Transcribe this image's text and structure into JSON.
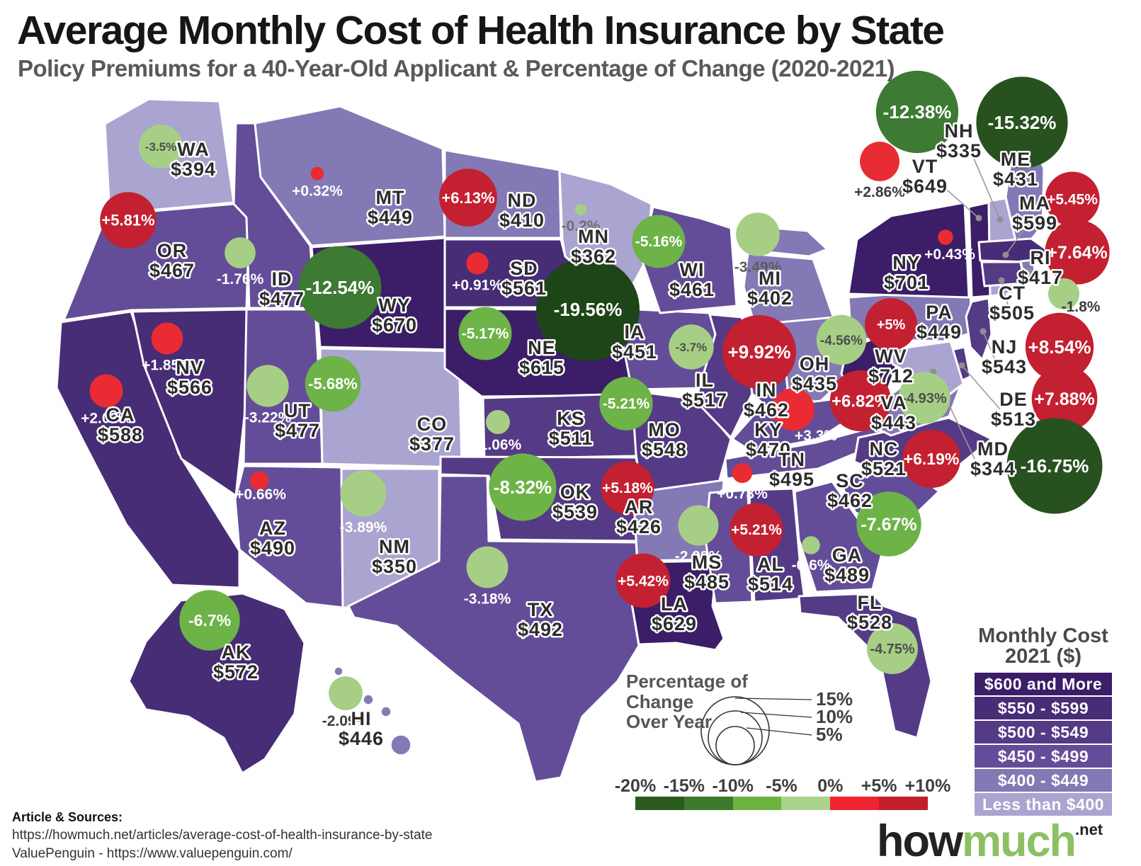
{
  "header": {
    "title": "Average Monthly Cost of Health Insurance by State",
    "subtitle": "Policy Premiums for a 40-Year-Old Applicant & Percentage of Change (2020-2021)"
  },
  "chart_data": {
    "type": "choropleth-bubble-map",
    "region": "United States",
    "title": "Average Monthly Cost of Health Insurance by State",
    "subtitle": "Policy Premiums for a 40-Year-Old Applicant & Percentage of Change (2020-2021)",
    "states": [
      {
        "abbr": "WA",
        "cost": 394,
        "cost_label": "$394",
        "change_pct": -3.5,
        "change_label": "-3.5%"
      },
      {
        "abbr": "OR",
        "cost": 467,
        "cost_label": "$467",
        "change_pct": 5.81,
        "change_label": "+5.81%"
      },
      {
        "abbr": "CA",
        "cost": 588,
        "cost_label": "$588",
        "change_pct": 2.03,
        "change_label": "+2.03%"
      },
      {
        "abbr": "NV",
        "cost": 566,
        "cost_label": "$566",
        "change_pct": 1.85,
        "change_label": "+1.85%"
      },
      {
        "abbr": "ID",
        "cost": 477,
        "cost_label": "$477",
        "change_pct": -1.76,
        "change_label": "-1.76%"
      },
      {
        "abbr": "MT",
        "cost": 449,
        "cost_label": "$449",
        "change_pct": 0.32,
        "change_label": "+0.32%"
      },
      {
        "abbr": "WY",
        "cost": 670,
        "cost_label": "$670",
        "change_pct": -12.54,
        "change_label": "-12.54%"
      },
      {
        "abbr": "UT",
        "cost": 477,
        "cost_label": "$477",
        "change_pct": -3.22,
        "change_label": "-3.22%"
      },
      {
        "abbr": "CO",
        "cost": 377,
        "cost_label": "$377",
        "change_pct": -5.68,
        "change_label": "-5.68%"
      },
      {
        "abbr": "AZ",
        "cost": 490,
        "cost_label": "$490",
        "change_pct": 0.66,
        "change_label": "+0.66%"
      },
      {
        "abbr": "NM",
        "cost": 350,
        "cost_label": "$350",
        "change_pct": -3.89,
        "change_label": "-3.89%"
      },
      {
        "abbr": "ND",
        "cost": 410,
        "cost_label": "$410",
        "change_pct": 6.13,
        "change_label": "+6.13%"
      },
      {
        "abbr": "SD",
        "cost": 561,
        "cost_label": "$561",
        "change_pct": 0.91,
        "change_label": "+0.91%"
      },
      {
        "abbr": "NE",
        "cost": 615,
        "cost_label": "$615",
        "change_pct": -5.17,
        "change_label": "-5.17%"
      },
      {
        "abbr": "KS",
        "cost": 511,
        "cost_label": "$511",
        "change_pct": -1.06,
        "change_label": "-1.06%"
      },
      {
        "abbr": "OK",
        "cost": 539,
        "cost_label": "$539",
        "change_pct": -8.32,
        "change_label": "-8.32%"
      },
      {
        "abbr": "TX",
        "cost": 492,
        "cost_label": "$492",
        "change_pct": -3.18,
        "change_label": "-3.18%"
      },
      {
        "abbr": "MN",
        "cost": 362,
        "cost_label": "$362",
        "change_pct": -0.2,
        "change_label": "-0.2%"
      },
      {
        "abbr": "IA",
        "cost": 451,
        "cost_label": "$451",
        "change_pct": -19.56,
        "change_label": "-19.56%"
      },
      {
        "abbr": "MO",
        "cost": 548,
        "cost_label": "$548",
        "change_pct": -5.21,
        "change_label": "-5.21%"
      },
      {
        "abbr": "AR",
        "cost": 426,
        "cost_label": "$426",
        "change_pct": 5.18,
        "change_label": "+5.18%"
      },
      {
        "abbr": "LA",
        "cost": 629,
        "cost_label": "$629",
        "change_pct": 5.42,
        "change_label": "+5.42%"
      },
      {
        "abbr": "WI",
        "cost": 461,
        "cost_label": "$461",
        "change_pct": -5.16,
        "change_label": "-5.16%"
      },
      {
        "abbr": "IL",
        "cost": 517,
        "cost_label": "$517",
        "change_pct": -3.7,
        "change_label": "-3.7%"
      },
      {
        "abbr": "MI",
        "cost": 402,
        "cost_label": "$402",
        "change_pct": -3.49,
        "change_label": "-3.49%"
      },
      {
        "abbr": "IN",
        "cost": 462,
        "cost_label": "$462",
        "change_pct": 9.92,
        "change_label": "+9.92%"
      },
      {
        "abbr": "OH",
        "cost": 435,
        "cost_label": "$435",
        "change_pct": -4.56,
        "change_label": "-4.56%"
      },
      {
        "abbr": "KY",
        "cost": 470,
        "cost_label": "$470",
        "change_pct": 3.3,
        "change_label": "+3.3%"
      },
      {
        "abbr": "TN",
        "cost": 495,
        "cost_label": "$495",
        "change_pct": 0.73,
        "change_label": "+0.73%"
      },
      {
        "abbr": "MS",
        "cost": 485,
        "cost_label": "$485",
        "change_pct": -2.98,
        "change_label": "-2.98%"
      },
      {
        "abbr": "AL",
        "cost": 514,
        "cost_label": "$514",
        "change_pct": 5.21,
        "change_label": "+5.21%"
      },
      {
        "abbr": "GA",
        "cost": 489,
        "cost_label": "$489",
        "change_pct": -0.6,
        "change_label": "-0.6%"
      },
      {
        "abbr": "FL",
        "cost": 528,
        "cost_label": "$528",
        "change_pct": -4.75,
        "change_label": "-4.75%"
      },
      {
        "abbr": "SC",
        "cost": 462,
        "cost_label": "$462",
        "change_pct": -7.67,
        "change_label": "-7.67%"
      },
      {
        "abbr": "NC",
        "cost": 521,
        "cost_label": "$521",
        "change_pct": 6.19,
        "change_label": "+6.19%"
      },
      {
        "abbr": "VA",
        "cost": 443,
        "cost_label": "$443",
        "change_pct": -4.93,
        "change_label": "-4.93%"
      },
      {
        "abbr": "WV",
        "cost": 712,
        "cost_label": "$712",
        "change_pct": 6.82,
        "change_label": "+6.82%"
      },
      {
        "abbr": "PA",
        "cost": 449,
        "cost_label": "$449",
        "change_pct": 5,
        "change_label": "+5%"
      },
      {
        "abbr": "NY",
        "cost": 701,
        "cost_label": "$701",
        "change_pct": 0.43,
        "change_label": "+0.43%"
      },
      {
        "abbr": "VT",
        "cost": 649,
        "cost_label": "$649",
        "change_pct": 2.86,
        "change_label": "+2.86%"
      },
      {
        "abbr": "NH",
        "cost": 335,
        "cost_label": "$335",
        "change_pct": -12.38,
        "change_label": "-12.38%"
      },
      {
        "abbr": "ME",
        "cost": 431,
        "cost_label": "$431",
        "change_pct": -15.32,
        "change_label": "-15.32%"
      },
      {
        "abbr": "MA",
        "cost": 599,
        "cost_label": "$599",
        "change_pct": 5.45,
        "change_label": "+5.45%"
      },
      {
        "abbr": "RI",
        "cost": 417,
        "cost_label": "$417",
        "change_pct": 7.64,
        "change_label": "+7.64%"
      },
      {
        "abbr": "CT",
        "cost": 505,
        "cost_label": "$505",
        "change_pct": -1.8,
        "change_label": "-1.8%"
      },
      {
        "abbr": "NJ",
        "cost": 543,
        "cost_label": "$543",
        "change_pct": 8.54,
        "change_label": "+8.54%"
      },
      {
        "abbr": "DE",
        "cost": 513,
        "cost_label": "$513",
        "change_pct": 7.88,
        "change_label": "+7.88%"
      },
      {
        "abbr": "MD",
        "cost": 344,
        "cost_label": "$344",
        "change_pct": -16.75,
        "change_label": "-16.75%"
      },
      {
        "abbr": "AK",
        "cost": 572,
        "cost_label": "$572",
        "change_pct": -6.7,
        "change_label": "-6.7%"
      },
      {
        "abbr": "HI",
        "cost": 446,
        "cost_label": "$446",
        "change_pct": -2.09,
        "change_label": "-2.09%"
      }
    ],
    "cost_legend": {
      "title_line1": "Monthly Cost",
      "title_line2": "2021 ($)",
      "bands": [
        {
          "label": "$600 and More",
          "min": 600,
          "max": 99999,
          "color": "#3b1d68"
        },
        {
          "label": "$550 - $599",
          "min": 550,
          "max": 599,
          "color": "#472c76"
        },
        {
          "label": "$500 - $549",
          "min": 500,
          "max": 549,
          "color": "#553a86"
        },
        {
          "label": "$450 - $499",
          "min": 450,
          "max": 499,
          "color": "#644d98"
        },
        {
          "label": "$400 - $449",
          "min": 400,
          "max": 449,
          "color": "#8379b5"
        },
        {
          "label": "Less than $400",
          "min": 0,
          "max": 399,
          "color": "#aaa4d0"
        }
      ]
    },
    "change_scale": {
      "tick_labels": [
        "-20%",
        "-15%",
        "-10%",
        "-5%",
        "0%",
        "+5%",
        "+10%"
      ],
      "segment_colors": [
        "#2b5a1e",
        "#3d7a2f",
        "#6cb33f",
        "#a9d28a",
        "#ee2432",
        "#c21f2b"
      ]
    },
    "change_colors": {
      "increase_high": "#c32031",
      "increase_low": "#e92b33",
      "decrease_light": "#a6cf85",
      "decrease_mid": "#6db348",
      "decrease_dark": "#3d7a33",
      "decrease_darker": "#27511f",
      "decrease_deepest": "#1e4518"
    },
    "size_legend": {
      "title_lines": [
        "Percentage of",
        "Change",
        "Over Year"
      ],
      "circle_labels": [
        "15%",
        "10%",
        "5%"
      ]
    }
  },
  "footer": {
    "sources_heading": "Article & Sources:",
    "source_line1": "https://howmuch.net/articles/average-cost-of-health-insurance-by-state",
    "source_line2": "ValuePenguin - https://www.valuepenguin.com/",
    "logo": {
      "part1": "how",
      "part2": "much",
      "suffix": ".net"
    }
  }
}
